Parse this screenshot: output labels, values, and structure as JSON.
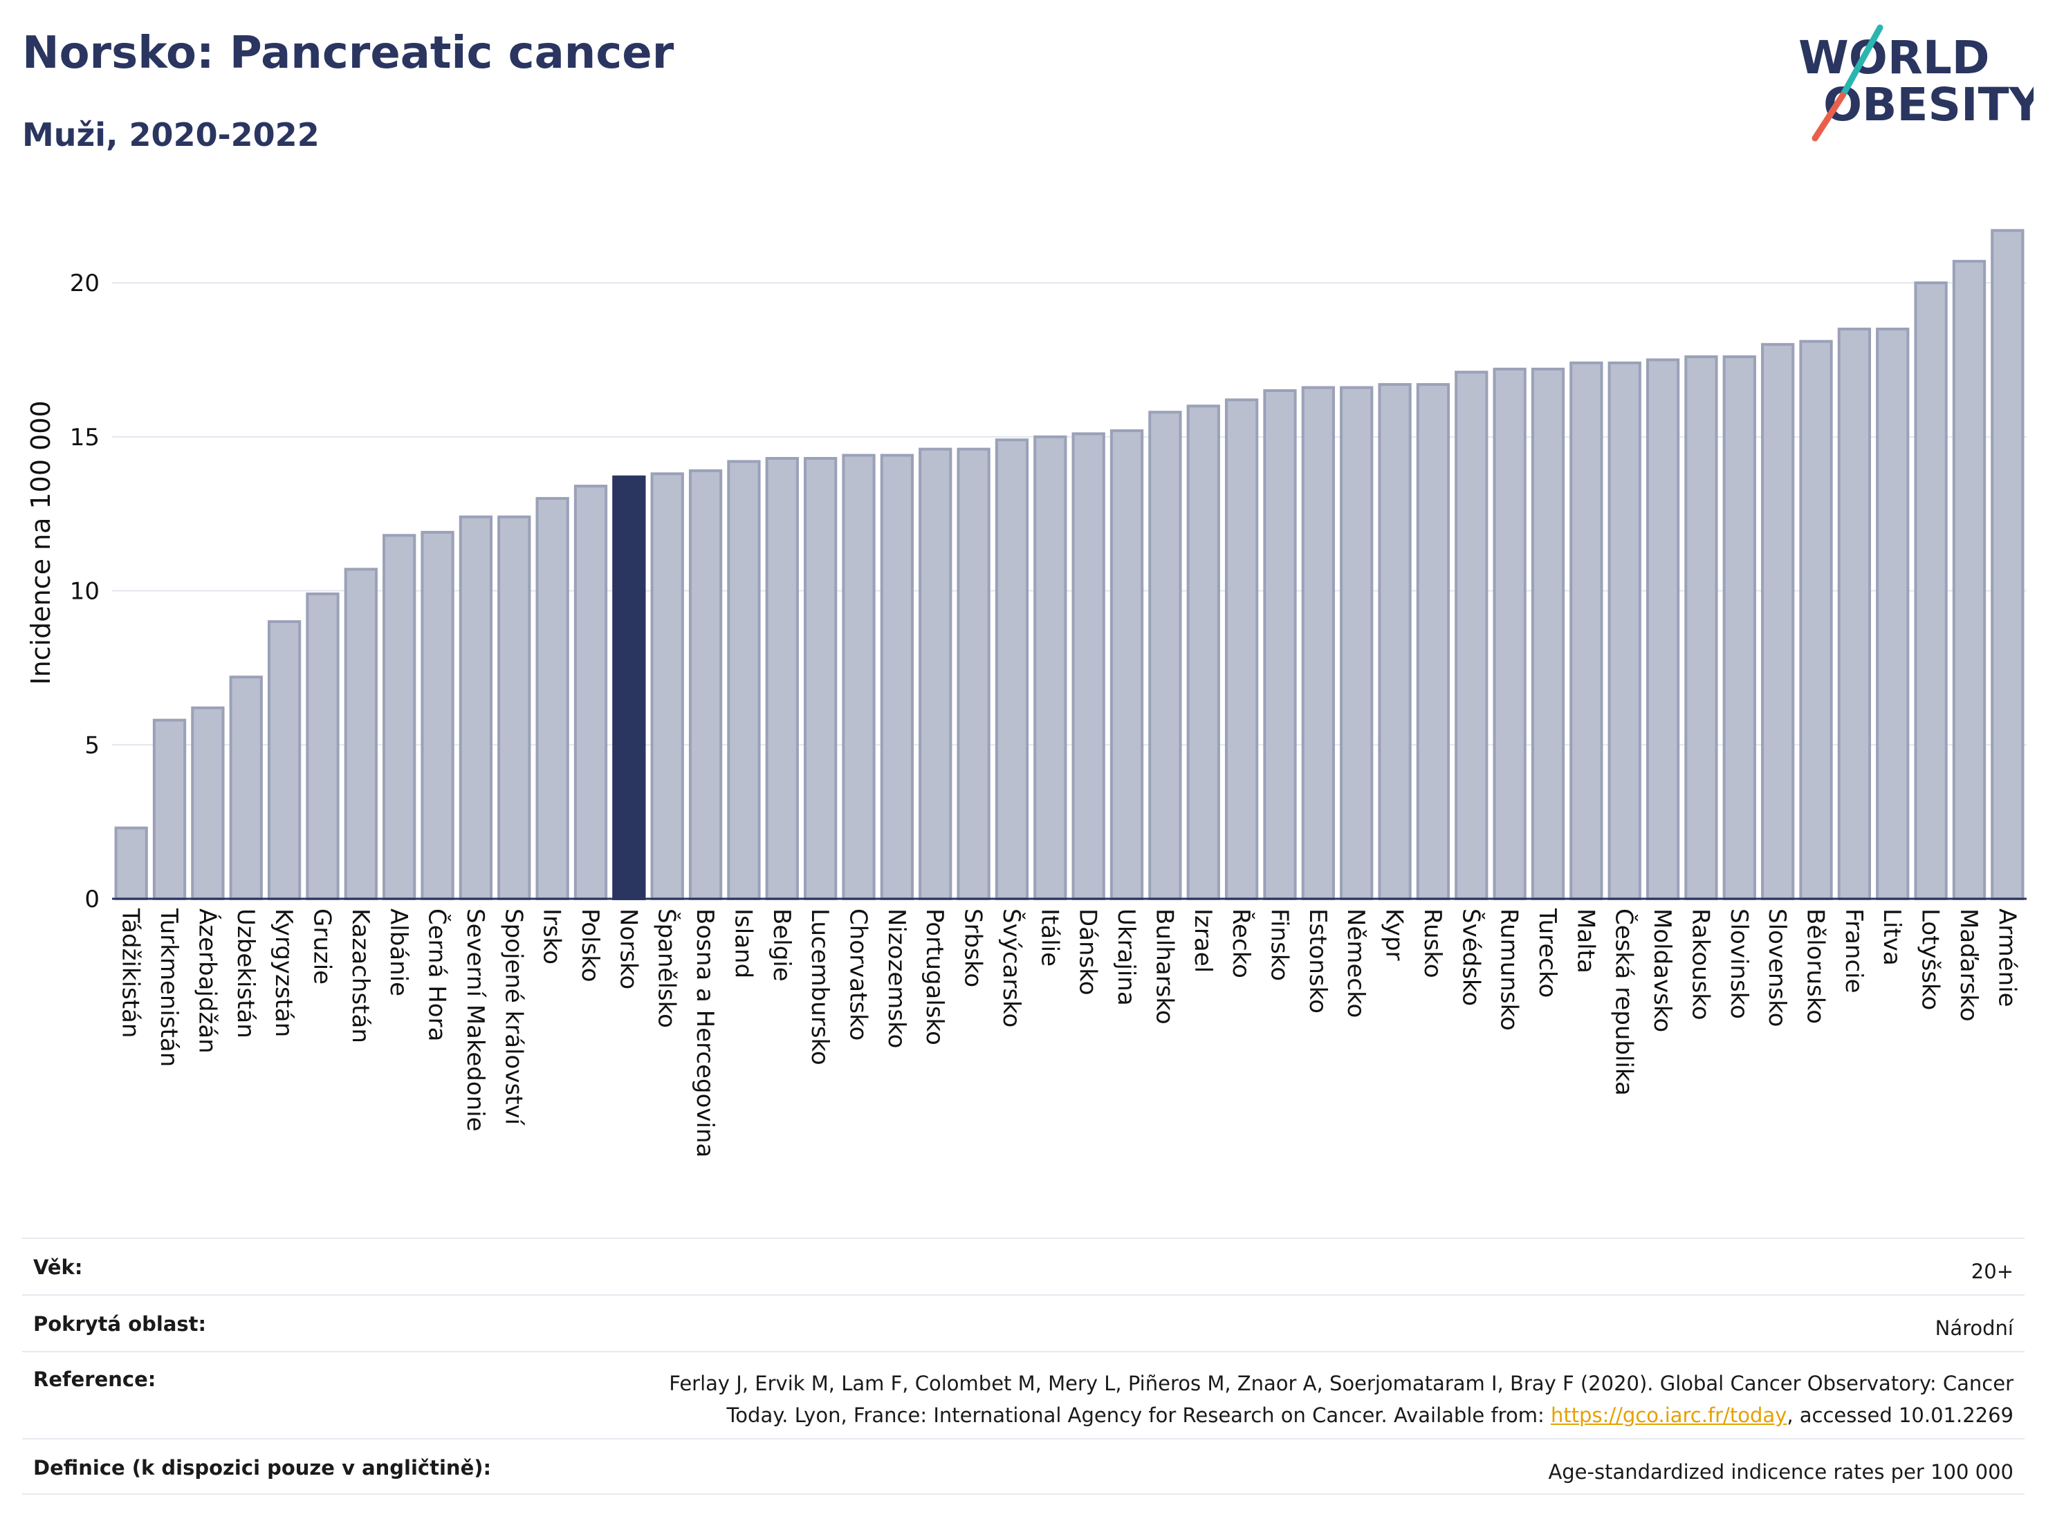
{
  "header": {
    "title": "Norsko: Pancreatic cancer",
    "subtitle": "Muži, 2020-2022"
  },
  "logo": {
    "line1": "WORLD",
    "line2": "OBESITY",
    "text_color": "#2a3560",
    "slash_color_top": "#2bb5b0",
    "slash_color_bottom": "#e8604c"
  },
  "chart_data": {
    "type": "bar",
    "ylabel": "Incidence na 100 000",
    "ylim": [
      0,
      22
    ],
    "yticks": [
      0,
      5,
      10,
      15,
      20
    ],
    "grid": true,
    "highlight": "Norsko",
    "colors": {
      "bar": "#b9bfcf",
      "bar_edge": "#9aa1b8",
      "highlight": "#2a3560",
      "grid": "#e3e6ee",
      "axis": "#2a3560"
    },
    "categories": [
      "Tádžikistán",
      "Turkmenistán",
      "Ázerbajdžán",
      "Uzbekistán",
      "Kyrgyzstán",
      "Gruzie",
      "Kazachstán",
      "Albánie",
      "Černá Hora",
      "Severní Makedonie",
      "Spojené království",
      "Irsko",
      "Polsko",
      "Norsko",
      "Španělsko",
      "Bosna a Hercegovina",
      "Island",
      "Belgie",
      "Lucembursko",
      "Chorvatsko",
      "Nizozemsko",
      "Portugalsko",
      "Srbsko",
      "Švýcarsko",
      "Itálie",
      "Dánsko",
      "Ukrajina",
      "Bulharsko",
      "Izrael",
      "Řecko",
      "Finsko",
      "Estonsko",
      "Německo",
      "Kypr",
      "Rusko",
      "Švédsko",
      "Rumunsko",
      "Turecko",
      "Malta",
      "Česká republika",
      "Moldavsko",
      "Rakousko",
      "Slovinsko",
      "Slovensko",
      "Bělorusko",
      "Francie",
      "Litva",
      "Lotyšsko",
      "Maďarsko",
      "Arménie"
    ],
    "values": [
      2.3,
      5.8,
      6.2,
      7.2,
      9.0,
      9.9,
      10.7,
      11.8,
      11.9,
      12.4,
      12.4,
      13.0,
      13.4,
      13.7,
      13.8,
      13.9,
      14.2,
      14.3,
      14.3,
      14.4,
      14.4,
      14.6,
      14.6,
      14.9,
      15.0,
      15.1,
      15.2,
      15.8,
      16.0,
      16.2,
      16.5,
      16.6,
      16.6,
      16.7,
      16.7,
      17.1,
      17.2,
      17.2,
      17.4,
      17.4,
      17.5,
      17.6,
      17.6,
      18.0,
      18.1,
      18.5,
      18.5,
      20.0,
      20.7,
      21.7
    ]
  },
  "info": {
    "age_label": "Věk:",
    "age_value": "20+",
    "coverage_label": "Pokrytá oblast:",
    "coverage_value": "Národní",
    "reference_label": "Reference:",
    "reference_text_1": "Ferlay J, Ervik M, Lam F, Colombet M, Mery L, Piñeros M, Znaor A, Soerjomataram I, Bray F (2020). Global Cancer Observatory: Cancer",
    "reference_text_2": "Today. Lyon, France: International Agency for Research on Cancer. Available from: ",
    "reference_link": "https://gco.iarc.fr/today",
    "reference_text_3": ", accessed 10.01.2269",
    "definition_label": "Definice (k dispozici pouze v angličtině):",
    "definition_value": "Age-standardized indicence rates per 100 000"
  }
}
